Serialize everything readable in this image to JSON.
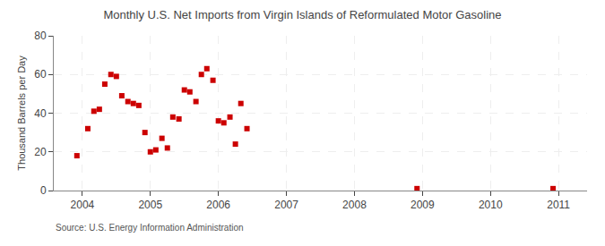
{
  "chart_data": {
    "type": "scatter",
    "title": "Monthly U.S. Net Imports from Virgin Islands of Reformulated Motor Gasoline",
    "ylabel": "Thousand Barrels per Day",
    "annotations": [
      "Source: U.S. Energy Information Administration"
    ],
    "x": [
      2003.92,
      2004.08,
      2004.17,
      2004.25,
      2004.33,
      2004.42,
      2004.5,
      2004.58,
      2004.67,
      2004.75,
      2004.83,
      2004.92,
      2005.0,
      2005.08,
      2005.17,
      2005.25,
      2005.33,
      2005.42,
      2005.5,
      2005.58,
      2005.67,
      2005.75,
      2005.83,
      2005.92,
      2006.0,
      2006.08,
      2006.17,
      2006.25,
      2006.33,
      2006.42,
      2008.92,
      2010.92
    ],
    "values": [
      18,
      32,
      41,
      42,
      55,
      60,
      59,
      49,
      46,
      45,
      44,
      30,
      20,
      21,
      27,
      22,
      38,
      37,
      52,
      51,
      46,
      60,
      63,
      57,
      36,
      35,
      38,
      24,
      45,
      32,
      1,
      1
    ],
    "color": "#cc0000",
    "marker": "square",
    "xlim": [
      2003.58,
      2011.42
    ],
    "ylim": [
      0,
      80
    ],
    "xticks": [
      2004,
      2005,
      2006,
      2007,
      2008,
      2009,
      2010,
      2011
    ],
    "yticks": [
      0,
      20,
      40,
      60,
      80
    ],
    "grid": true
  }
}
